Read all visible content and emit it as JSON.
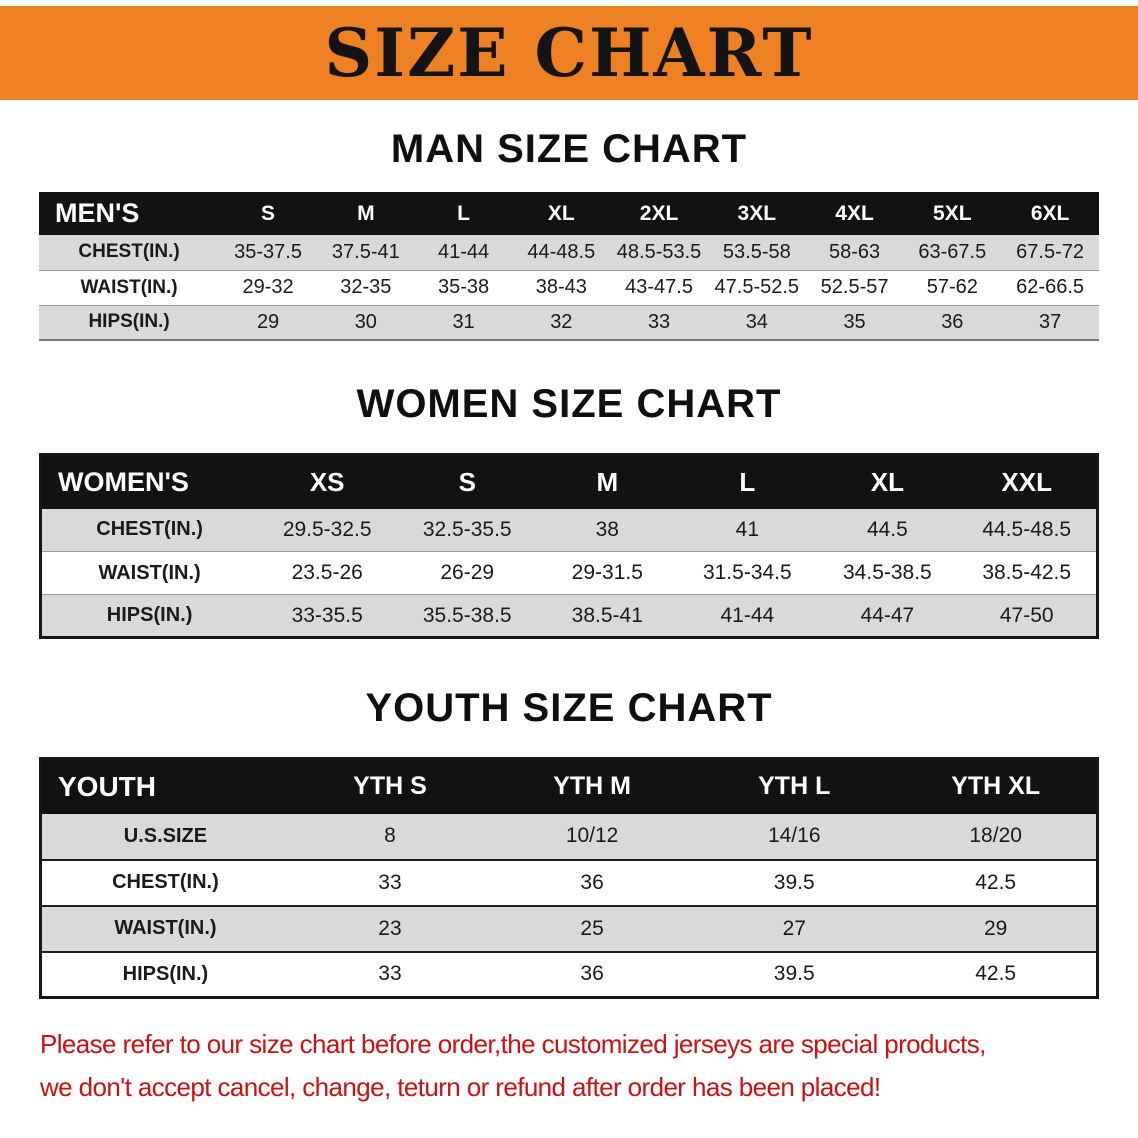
{
  "banner": {
    "title": "SIZE CHART"
  },
  "colors": {
    "banner_orange": "#ee8123",
    "header_black": "#121212",
    "row_gray": "#d9d9d9",
    "disclaimer_red": "#cc1111"
  },
  "men": {
    "heading": "MAN SIZE CHART",
    "corner": "MEN'S",
    "columns": [
      "S",
      "M",
      "L",
      "XL",
      "2XL",
      "3XL",
      "4XL",
      "5XL",
      "6XL"
    ],
    "rows": [
      {
        "label": "CHEST(IN.)",
        "values": [
          "35-37.5",
          "37.5-41",
          "41-44",
          "44-48.5",
          "48.5-53.5",
          "53.5-58",
          "58-63",
          "63-67.5",
          "67.5-72"
        ]
      },
      {
        "label": "WAIST(IN.)",
        "values": [
          "29-32",
          "32-35",
          "35-38",
          "38-43",
          "43-47.5",
          "47.5-52.5",
          "52.5-57",
          "57-62",
          "62-66.5"
        ]
      },
      {
        "label": "HIPS(IN.)",
        "values": [
          "29",
          "30",
          "31",
          "32",
          "33",
          "34",
          "35",
          "36",
          "37"
        ]
      }
    ]
  },
  "women": {
    "heading": "WOMEN SIZE CHART",
    "corner": "WOMEN'S",
    "columns": [
      "XS",
      "S",
      "M",
      "L",
      "XL",
      "XXL"
    ],
    "rows": [
      {
        "label": "CHEST(IN.)",
        "values": [
          "29.5-32.5",
          "32.5-35.5",
          "38",
          "41",
          "44.5",
          "44.5-48.5"
        ]
      },
      {
        "label": "WAIST(IN.)",
        "values": [
          "23.5-26",
          "26-29",
          "29-31.5",
          "31.5-34.5",
          "34.5-38.5",
          "38.5-42.5"
        ]
      },
      {
        "label": "HIPS(IN.)",
        "values": [
          "33-35.5",
          "35.5-38.5",
          "38.5-41",
          "41-44",
          "44-47",
          "47-50"
        ]
      }
    ]
  },
  "youth": {
    "heading": "YOUTH SIZE CHART",
    "corner": "YOUTH",
    "columns": [
      "YTH S",
      "YTH M",
      "YTH L",
      "YTH XL"
    ],
    "rows": [
      {
        "label": "U.S.SIZE",
        "values": [
          "8",
          "10/12",
          "14/16",
          "18/20"
        ]
      },
      {
        "label": "CHEST(IN.)",
        "values": [
          "33",
          "36",
          "39.5",
          "42.5"
        ]
      },
      {
        "label": "WAIST(IN.)",
        "values": [
          "23",
          "25",
          "27",
          "29"
        ]
      },
      {
        "label": "HIPS(IN.)",
        "values": [
          "33",
          "36",
          "39.5",
          "42.5"
        ]
      }
    ]
  },
  "disclaimer": {
    "line1": "Please refer to our size chart before order,the customized jerseys are special products,",
    "line2": "we don't accept cancel, change, teturn or refund after order has been placed!"
  }
}
